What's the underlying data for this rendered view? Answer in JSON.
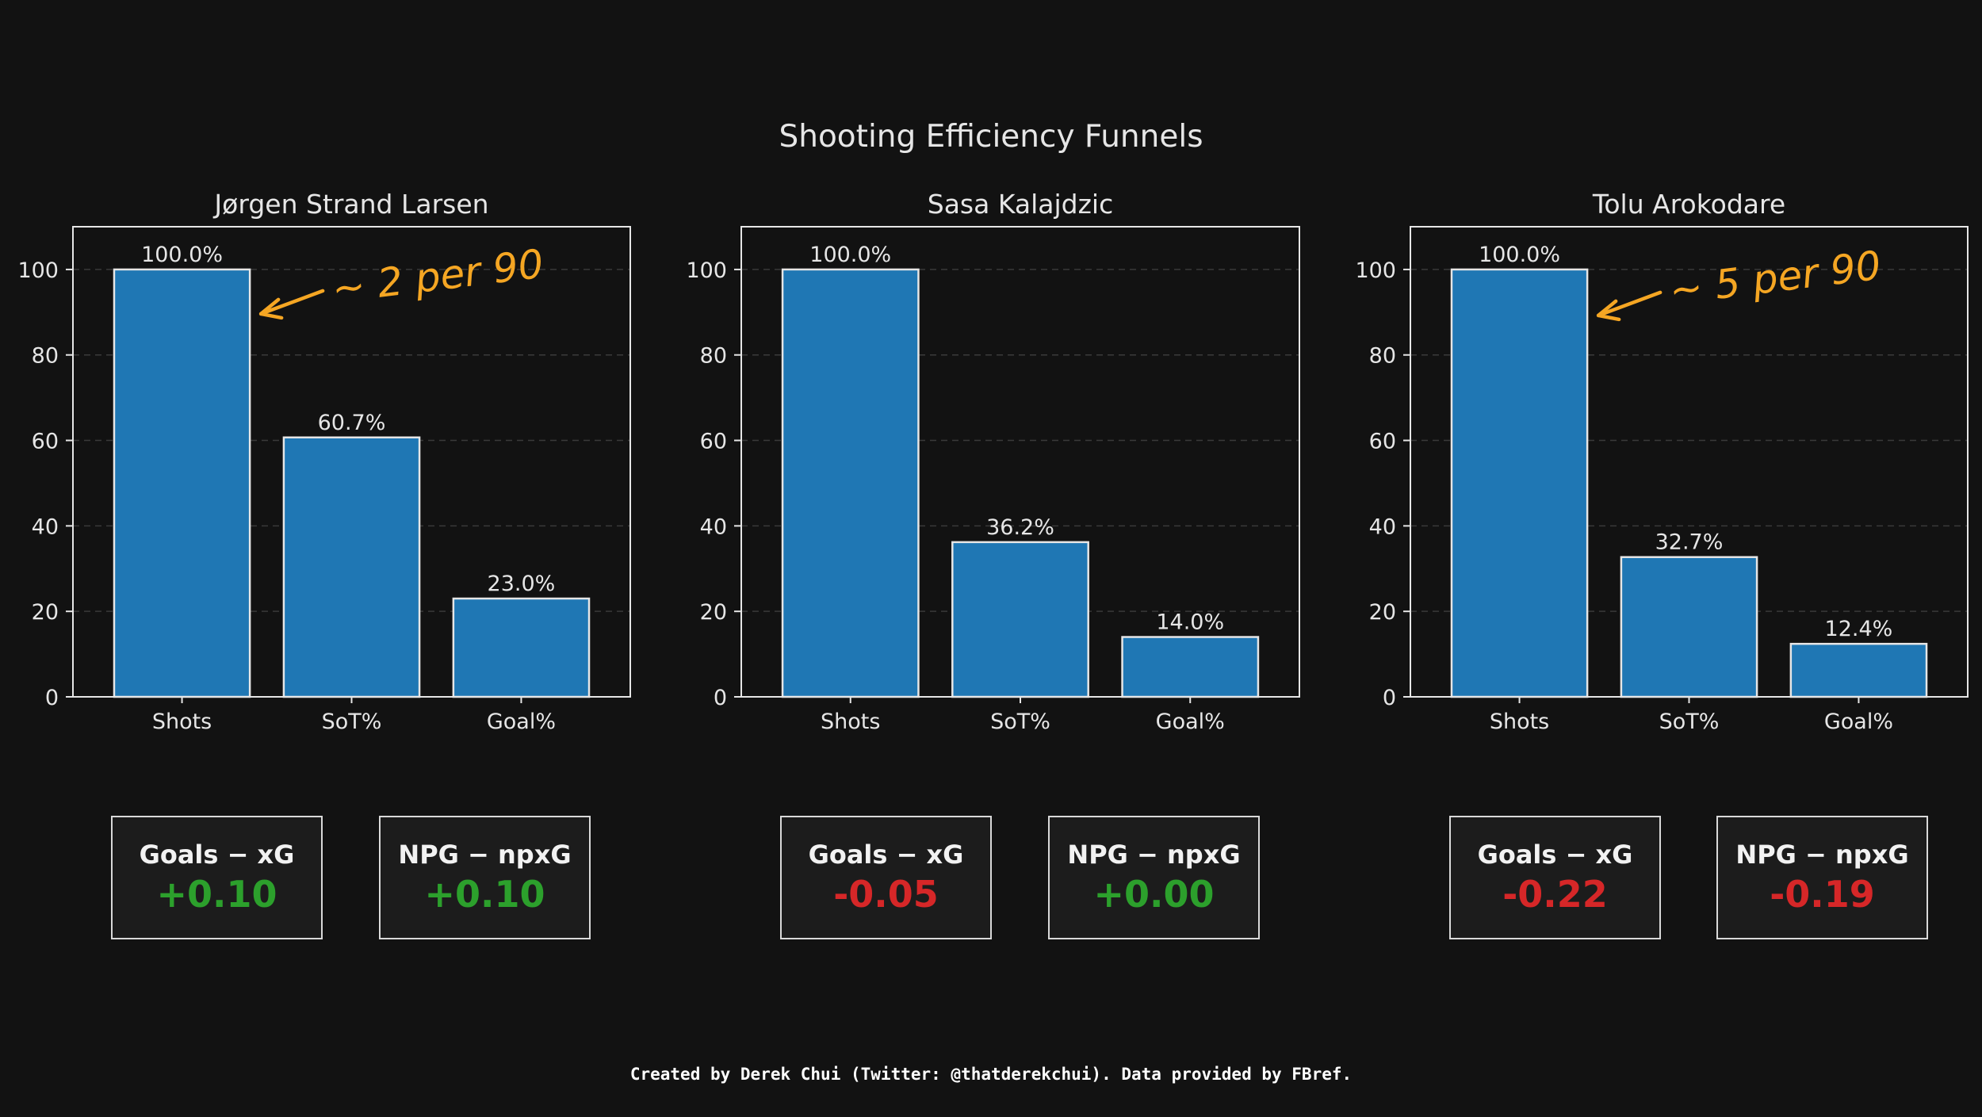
{
  "title": "Shooting Efficiency Funnels",
  "footer": "Created by Derek Chui (Twitter: @thatderekchui). Data provided by FBref.",
  "colors": {
    "background": "#121212",
    "bar": "#1f77b4",
    "positive": "#2ca02c",
    "negative": "#d62728",
    "annotation": "#f5a623"
  },
  "chart_data": [
    {
      "type": "bar",
      "title": "Jørgen Strand Larsen",
      "categories": [
        "Shots",
        "SoT%",
        "Goal%"
      ],
      "values": [
        100.0,
        60.7,
        23.0
      ],
      "value_labels": [
        "100.0%",
        "60.7%",
        "23.0%"
      ],
      "ylim": [
        0,
        110
      ],
      "yticks": [
        0,
        20,
        40,
        60,
        80,
        100
      ],
      "grid": "horizontal dashed",
      "annotation": "~ 2 per 90",
      "metrics": [
        {
          "label": "Goals − xG",
          "value": "+0.10",
          "sign": "positive"
        },
        {
          "label": "NPG − npxG",
          "value": "+0.10",
          "sign": "positive"
        }
      ]
    },
    {
      "type": "bar",
      "title": "Sasa Kalajdzic",
      "categories": [
        "Shots",
        "SoT%",
        "Goal%"
      ],
      "values": [
        100.0,
        36.2,
        14.0
      ],
      "value_labels": [
        "100.0%",
        "36.2%",
        "14.0%"
      ],
      "ylim": [
        0,
        110
      ],
      "yticks": [
        0,
        20,
        40,
        60,
        80,
        100
      ],
      "grid": "horizontal dashed",
      "annotation": "",
      "metrics": [
        {
          "label": "Goals − xG",
          "value": "-0.05",
          "sign": "negative"
        },
        {
          "label": "NPG − npxG",
          "value": "+0.00",
          "sign": "positive"
        }
      ]
    },
    {
      "type": "bar",
      "title": "Tolu Arokodare",
      "categories": [
        "Shots",
        "SoT%",
        "Goal%"
      ],
      "values": [
        100.0,
        32.7,
        12.4
      ],
      "value_labels": [
        "100.0%",
        "32.7%",
        "12.4%"
      ],
      "ylim": [
        0,
        110
      ],
      "yticks": [
        0,
        20,
        40,
        60,
        80,
        100
      ],
      "grid": "horizontal dashed",
      "annotation": "~ 5 per 90",
      "metrics": [
        {
          "label": "Goals − xG",
          "value": "-0.22",
          "sign": "negative"
        },
        {
          "label": "NPG − npxG",
          "value": "-0.19",
          "sign": "negative"
        }
      ]
    }
  ]
}
